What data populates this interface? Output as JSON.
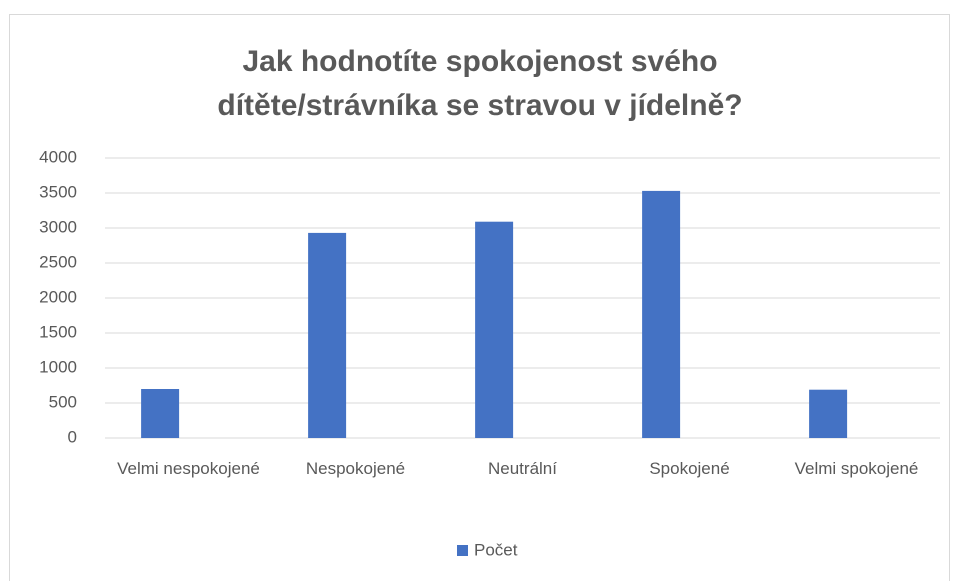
{
  "chart_data": {
    "type": "bar",
    "title": "Jak hodnotíte spokojenost svého dítěte/strávníka se stravou v jídelně?",
    "categories": [
      "Velmi nespokojené",
      "Nespokojené",
      "Neutrální",
      "Spokojené",
      "Velmi spokojené"
    ],
    "series": [
      {
        "name": "Počet",
        "color": "#4472c4",
        "values": [
          700,
          2930,
          3090,
          3530,
          690
        ]
      }
    ],
    "ylim": [
      0,
      4000
    ],
    "yticks": [
      0,
      500,
      1000,
      1500,
      2000,
      2500,
      3000,
      3500,
      4000
    ],
    "grid": true,
    "legend": "bottom"
  }
}
